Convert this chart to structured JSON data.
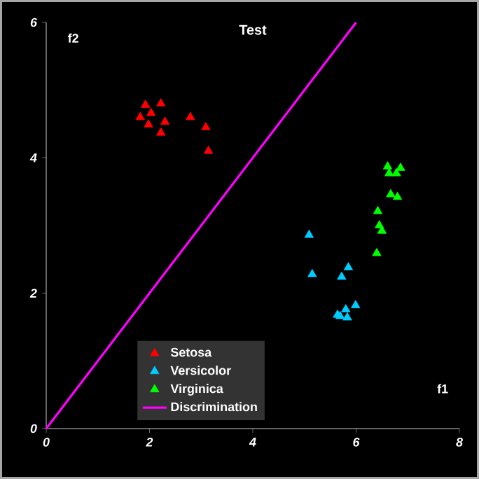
{
  "chart_data": {
    "type": "scatter",
    "title": "Test",
    "xlabel": "f1",
    "ylabel": "f2",
    "xlim": [
      0,
      8
    ],
    "xticks": [
      0,
      2,
      4,
      6,
      8
    ],
    "ylim": [
      0,
      6
    ],
    "yticks": [
      0,
      2,
      4,
      6
    ],
    "legend": "bottom",
    "grid": false,
    "series": [
      {
        "name": "Setosa",
        "marker": "triangle",
        "color": "#ff0000",
        "x": [
          1.92,
          2.22,
          1.82,
          2.03,
          1.98,
          2.3,
          2.22,
          2.79,
          3.09,
          3.14
        ],
        "values": [
          4.78,
          4.8,
          4.6,
          4.66,
          4.49,
          4.53,
          4.37,
          4.6,
          4.45,
          4.1
        ]
      },
      {
        "name": "Versicolor",
        "marker": "triangle",
        "color": "#00ccff",
        "x": [
          5.09,
          5.15,
          5.85,
          5.72,
          5.99,
          5.8,
          5.69,
          5.83,
          5.64
        ],
        "values": [
          2.86,
          2.28,
          2.38,
          2.24,
          1.82,
          1.76,
          1.66,
          1.64,
          1.68
        ]
      },
      {
        "name": "Virginica",
        "marker": "triangle",
        "color": "#00ff00",
        "x": [
          6.61,
          6.86,
          6.78,
          6.64,
          6.67,
          6.8,
          6.42,
          6.45,
          6.5,
          6.4
        ],
        "values": [
          3.87,
          3.85,
          3.77,
          3.77,
          3.46,
          3.42,
          3.21,
          3.0,
          2.92,
          2.59
        ]
      },
      {
        "name": "Discrimination",
        "type": "line",
        "marker": "none",
        "color": "#ff00ff",
        "x": [
          0,
          6
        ],
        "values": [
          0,
          6
        ]
      }
    ]
  }
}
